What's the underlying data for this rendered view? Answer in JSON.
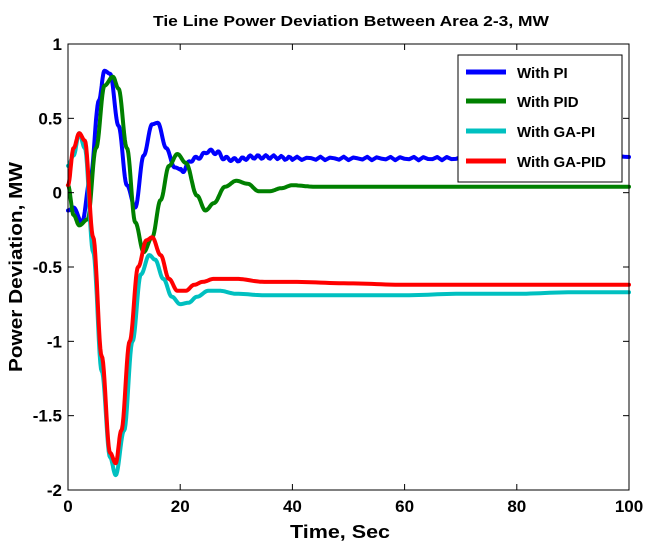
{
  "chart_data": {
    "type": "line",
    "title": "Tie Line Power Deviation Between Area 2-3, MW",
    "xlabel": "Time, Sec",
    "ylabel": "Power Deviation, MW",
    "xlim": [
      0,
      100
    ],
    "ylim": [
      -2,
      1
    ],
    "xticks": [
      0,
      20,
      40,
      60,
      80,
      100
    ],
    "yticks": [
      -2,
      -1.5,
      -1,
      -0.5,
      0,
      0.5,
      1
    ],
    "xtick_labels": [
      "0",
      "20",
      "40",
      "60",
      "80",
      "100"
    ],
    "ytick_labels": [
      "-2",
      "-1.5",
      "-1",
      "-0.5",
      "0",
      "0.5",
      "1"
    ],
    "grid": false,
    "legend_position": "top-right",
    "series": [
      {
        "name": "With PI",
        "color": "#0000ff",
        "x": [
          0,
          1,
          2.5,
          4,
          5.5,
          6.5,
          7.5,
          9,
          10.5,
          12,
          13.5,
          15,
          16,
          17.5,
          19,
          20.5,
          22,
          23.5,
          25,
          26.5,
          28,
          30,
          33,
          36,
          40,
          50,
          60,
          70,
          80,
          90,
          100
        ],
        "y": [
          -0.12,
          -0.1,
          -0.2,
          0.1,
          0.62,
          0.82,
          0.8,
          0.45,
          0.05,
          -0.1,
          0.25,
          0.46,
          0.47,
          0.3,
          0.17,
          0.15,
          0.22,
          0.24,
          0.28,
          0.27,
          0.23,
          0.22,
          0.24,
          0.24,
          0.23,
          0.23,
          0.23,
          0.23,
          0.23,
          0.23,
          0.24
        ]
      },
      {
        "name": "With PID",
        "color": "#008000",
        "x": [
          0,
          1,
          2,
          3.5,
          5,
          6.5,
          8,
          9,
          10.5,
          12,
          13.5,
          15,
          16.5,
          18,
          19.5,
          21,
          23,
          24.5,
          26,
          28,
          30,
          32,
          34,
          36,
          38,
          40,
          44,
          50,
          60,
          70,
          80,
          90,
          100
        ],
        "y": [
          0.05,
          -0.15,
          -0.22,
          -0.18,
          0.3,
          0.72,
          0.78,
          0.7,
          0.3,
          -0.2,
          -0.4,
          -0.3,
          -0.05,
          0.18,
          0.26,
          0.2,
          -0.02,
          -0.12,
          -0.07,
          0.04,
          0.08,
          0.06,
          0.01,
          0.01,
          0.03,
          0.05,
          0.04,
          0.04,
          0.04,
          0.04,
          0.04,
          0.04,
          0.04
        ]
      },
      {
        "name": "With GA-PI",
        "color": "#00c0c0",
        "x": [
          0,
          1,
          2,
          3,
          4.5,
          6,
          7.5,
          8.5,
          10,
          11.5,
          13,
          14.5,
          15.5,
          17,
          18.5,
          20,
          21.5,
          23,
          25,
          27,
          30,
          35,
          40,
          50,
          60,
          70,
          80,
          90,
          100
        ],
        "y": [
          0.18,
          0.25,
          0.4,
          0.3,
          -0.4,
          -1.2,
          -1.78,
          -1.9,
          -1.6,
          -1.0,
          -0.55,
          -0.42,
          -0.45,
          -0.58,
          -0.7,
          -0.75,
          -0.74,
          -0.7,
          -0.66,
          -0.66,
          -0.68,
          -0.69,
          -0.69,
          -0.69,
          -0.69,
          -0.68,
          -0.68,
          -0.67,
          -0.67
        ]
      },
      {
        "name": "With GA-PID",
        "color": "#ff0000",
        "x": [
          0,
          1,
          2,
          3,
          4.5,
          6,
          7.5,
          8.5,
          9.5,
          11,
          12.5,
          14,
          15,
          16.5,
          18,
          19.5,
          21,
          22.5,
          24,
          26,
          30,
          35,
          40,
          50,
          60,
          70,
          80,
          90,
          100
        ],
        "y": [
          0.05,
          0.3,
          0.4,
          0.35,
          -0.3,
          -1.1,
          -1.75,
          -1.82,
          -1.6,
          -1.0,
          -0.5,
          -0.32,
          -0.3,
          -0.42,
          -0.58,
          -0.66,
          -0.66,
          -0.62,
          -0.6,
          -0.58,
          -0.58,
          -0.6,
          -0.6,
          -0.61,
          -0.62,
          -0.62,
          -0.62,
          -0.62,
          -0.62
        ]
      }
    ]
  }
}
